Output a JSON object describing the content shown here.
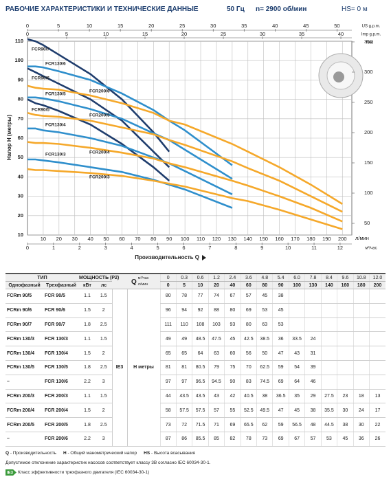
{
  "header": {
    "title": "РАБОЧИЕ ХАРАКТЕРИСТИКИ И ТЕХНИЧЕСКИЕ ДАННЫЕ",
    "frequency": "50 Гц",
    "speed": "n= 2900 об/мин",
    "suction": "HS= 0 м"
  },
  "chart_data": {
    "type": "line",
    "y_label": "Напор H (метры)",
    "x_label": "Производительность Q",
    "x_unit": "л/мин",
    "xlim": [
      0,
      206
    ],
    "xticks": [
      10,
      20,
      30,
      40,
      50,
      60,
      70,
      80,
      90,
      100,
      110,
      120,
      130,
      140,
      150,
      160,
      170,
      180,
      190,
      200
    ],
    "ylim": [
      10,
      110
    ],
    "yticks": [
      10,
      20,
      30,
      40,
      50,
      60,
      70,
      80,
      90,
      100,
      110
    ],
    "grid": true,
    "x_top": {
      "label": "US g.p.m.",
      "lim": [
        0,
        52.4
      ],
      "ticks": [
        0,
        5,
        10,
        15,
        20,
        25,
        30,
        35,
        40,
        45,
        50
      ]
    },
    "x_top2": {
      "label": "Imp g.p.m.",
      "lim": [
        0,
        41.4
      ],
      "ticks": [
        0,
        5,
        10,
        15,
        20,
        25,
        30,
        35,
        40
      ]
    },
    "x_bottom2": {
      "label": "м³/час",
      "lim": [
        0,
        12.45
      ],
      "ticks": [
        0,
        1,
        2,
        3,
        4,
        5,
        6,
        7,
        8,
        9,
        10,
        11,
        12
      ]
    },
    "y_right": {
      "label": "feet",
      "lim": [
        30.7,
        351.1
      ],
      "ticks": [
        50,
        100,
        150,
        200,
        250,
        300,
        350
      ]
    },
    "series": [
      {
        "name": "FCR90/5",
        "color": "#1f3d6d"
      },
      {
        "name": "FCR90/6",
        "color": "#1f3d6d"
      },
      {
        "name": "FCR90/7",
        "color": "#1f3d6d"
      },
      {
        "name": "FCR130/3",
        "color": "#2f8fcc"
      },
      {
        "name": "FCR130/4",
        "color": "#2f8fcc"
      },
      {
        "name": "FCR130/5",
        "color": "#2f8fcc"
      },
      {
        "name": "FCR130/6",
        "color": "#2f8fcc"
      },
      {
        "name": "FCR200/3",
        "color": "#f5a82a"
      },
      {
        "name": "FCR200/4",
        "color": "#f5a82a"
      },
      {
        "name": "FCR200/5",
        "color": "#f5a82a"
      },
      {
        "name": "FCR200/6",
        "color": "#f5a82a"
      }
    ]
  },
  "table": {
    "header": {
      "type": "ТИП",
      "power": "МОЩНОСТЬ (P2)",
      "single": "Однофазный",
      "three": "Трехфазный",
      "kw": "кВт",
      "hp": "лс",
      "q": "Q",
      "q_unit_m3": "м³/час",
      "q_unit_lpm": "л/мин"
    },
    "flow_m3h": [
      "0",
      "0.3",
      "0.6",
      "1.2",
      "2.4",
      "3.6",
      "4.8",
      "5.4",
      "6.0",
      "7.8",
      "8.4",
      "9.6",
      "10.8",
      "12.0"
    ],
    "flow_lpm": [
      0,
      5,
      10,
      20,
      40,
      60,
      80,
      90,
      100,
      130,
      140,
      160,
      180,
      200
    ],
    "class": "IE3",
    "head_label": "H метры",
    "rows": [
      {
        "single": "FCRm 90/5",
        "three": "FCR 90/5",
        "kw": 1.1,
        "hp": 1.5,
        "values": [
          80,
          78,
          77,
          74,
          67,
          57,
          45,
          38,
          null,
          null,
          null,
          null,
          null,
          null
        ]
      },
      {
        "single": "FCRm 90/6",
        "three": "FCR 90/6",
        "kw": 1.5,
        "hp": 2,
        "values": [
          96,
          94,
          92,
          88,
          80,
          69,
          53,
          45,
          null,
          null,
          null,
          null,
          null,
          null
        ]
      },
      {
        "single": "FCRm 90/7",
        "three": "FCR 90/7",
        "kw": 1.8,
        "hp": 2.5,
        "values": [
          111,
          110,
          108,
          103,
          93,
          80,
          63,
          53,
          null,
          null,
          null,
          null,
          null,
          null
        ]
      },
      {
        "single": "FCRm 130/3",
        "three": "FCR 130/3",
        "kw": 1.1,
        "hp": 1.5,
        "values": [
          49,
          49,
          48.5,
          47.5,
          45,
          42.5,
          38.5,
          36,
          33.5,
          24,
          null,
          null,
          null,
          null
        ]
      },
      {
        "single": "FCRm 130/4",
        "three": "FCR 130/4",
        "kw": 1.5,
        "hp": 2,
        "values": [
          65,
          65,
          64,
          63,
          60,
          56,
          50,
          47,
          43,
          31,
          null,
          null,
          null,
          null
        ]
      },
      {
        "single": "FCRm 130/5",
        "three": "FCR 130/5",
        "kw": 1.8,
        "hp": 2.5,
        "values": [
          81,
          81,
          80.5,
          79,
          75,
          70,
          62.5,
          59,
          54,
          39,
          null,
          null,
          null,
          null
        ]
      },
      {
        "single": "–",
        "three": "FCR 130/6",
        "kw": 2.2,
        "hp": 3,
        "values": [
          97,
          97,
          96.5,
          94.5,
          90,
          83,
          74.5,
          69,
          64,
          46,
          null,
          null,
          null,
          null
        ]
      },
      {
        "single": "FCRm 200/3",
        "three": "FCR 200/3",
        "kw": 1.1,
        "hp": 1.5,
        "values": [
          44,
          43.5,
          43.5,
          43,
          42,
          40.5,
          38,
          36.5,
          35,
          29,
          27.5,
          23,
          18,
          13
        ]
      },
      {
        "single": "FCRm 200/4",
        "three": "FCR 200/4",
        "kw": 1.5,
        "hp": 2,
        "values": [
          58,
          57.5,
          57.5,
          57,
          55,
          52.5,
          49.5,
          47,
          45,
          38,
          35.5,
          30,
          24,
          17
        ]
      },
      {
        "single": "FCRm 200/5",
        "three": "FCR 200/5",
        "kw": 1.8,
        "hp": 2.5,
        "values": [
          73,
          72,
          71.5,
          71,
          69,
          65.5,
          62,
          59,
          56.5,
          48,
          44.5,
          38,
          30,
          22
        ]
      },
      {
        "single": "–",
        "three": "FCR 200/6",
        "kw": 2.2,
        "hp": 3,
        "values": [
          87,
          86,
          85.5,
          85,
          82,
          78,
          73,
          69,
          67,
          57,
          53,
          45,
          36,
          26
        ]
      }
    ]
  },
  "notes": {
    "abbreviations": [
      {
        "abbr": "Q",
        "text": "- Производительность"
      },
      {
        "abbr": "H",
        "text": "- Общий манометрический напор"
      },
      {
        "abbr": "HS",
        "text": "- Высота всасывания"
      }
    ],
    "tolerance": "Допустимое отклонение характеристик насосов соответствует классу 3B согласно IEC 60034-30-1.",
    "ie_note": "Класс эффективности трехфазного двигателя (IEC 60034-30-1)"
  }
}
